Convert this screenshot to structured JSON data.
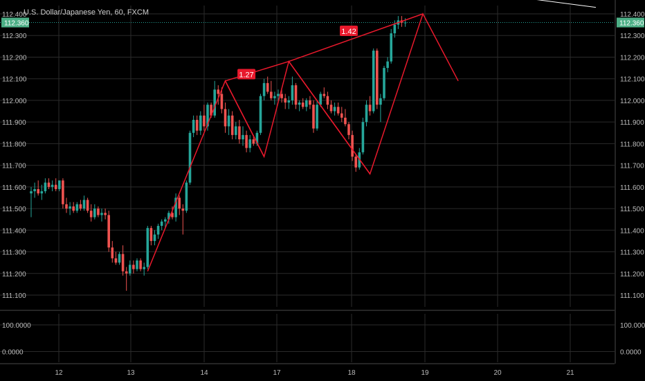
{
  "chart_data": {
    "type": "candlestick",
    "title": "U.S. Dollar/Japanese Yen, 60, FXCM",
    "xlabel": "",
    "ylabel": "",
    "x_ticks": [
      "12",
      "13",
      "14",
      "17",
      "18",
      "19",
      "20",
      "21"
    ],
    "price_panel": {
      "ylim": [
        111.05,
        112.43
      ],
      "y_ticks": [
        "112.400",
        "112.300",
        "112.200",
        "112.100",
        "112.000",
        "111.900",
        "111.800",
        "111.700",
        "111.600",
        "111.500",
        "111.400",
        "111.300",
        "111.200",
        "111.100"
      ],
      "y_tick_values": [
        112.4,
        112.3,
        112.2,
        112.1,
        112.0,
        111.9,
        111.8,
        111.7,
        111.6,
        111.5,
        111.4,
        111.3,
        111.2,
        111.1
      ],
      "last_price": 112.36,
      "last_price_label": "112.360",
      "grid": true
    },
    "indicator_panel": {
      "y_ticks": [
        "100.0000",
        "0.0000"
      ],
      "y_tick_values": [
        100,
        0
      ]
    },
    "candles": [
      {
        "o": 111.57,
        "h": 111.6,
        "l": 111.46,
        "c": 111.58
      },
      {
        "o": 111.58,
        "h": 111.62,
        "l": 111.55,
        "c": 111.59
      },
      {
        "o": 111.59,
        "h": 111.63,
        "l": 111.56,
        "c": 111.57
      },
      {
        "o": 111.57,
        "h": 111.61,
        "l": 111.54,
        "c": 111.58
      },
      {
        "o": 111.58,
        "h": 111.64,
        "l": 111.57,
        "c": 111.62
      },
      {
        "o": 111.62,
        "h": 111.64,
        "l": 111.59,
        "c": 111.6
      },
      {
        "o": 111.6,
        "h": 111.63,
        "l": 111.58,
        "c": 111.61
      },
      {
        "o": 111.61,
        "h": 111.64,
        "l": 111.58,
        "c": 111.59
      },
      {
        "o": 111.59,
        "h": 111.63,
        "l": 111.58,
        "c": 111.63
      },
      {
        "o": 111.63,
        "h": 111.64,
        "l": 111.5,
        "c": 111.52
      },
      {
        "o": 111.52,
        "h": 111.55,
        "l": 111.48,
        "c": 111.5
      },
      {
        "o": 111.5,
        "h": 111.53,
        "l": 111.47,
        "c": 111.51
      },
      {
        "o": 111.51,
        "h": 111.53,
        "l": 111.48,
        "c": 111.49
      },
      {
        "o": 111.49,
        "h": 111.53,
        "l": 111.48,
        "c": 111.52
      },
      {
        "o": 111.52,
        "h": 111.54,
        "l": 111.49,
        "c": 111.5
      },
      {
        "o": 111.5,
        "h": 111.56,
        "l": 111.49,
        "c": 111.54
      },
      {
        "o": 111.54,
        "h": 111.55,
        "l": 111.48,
        "c": 111.49
      },
      {
        "o": 111.49,
        "h": 111.52,
        "l": 111.44,
        "c": 111.46
      },
      {
        "o": 111.46,
        "h": 111.52,
        "l": 111.45,
        "c": 111.5
      },
      {
        "o": 111.5,
        "h": 111.51,
        "l": 111.46,
        "c": 111.47
      },
      {
        "o": 111.47,
        "h": 111.5,
        "l": 111.44,
        "c": 111.48
      },
      {
        "o": 111.48,
        "h": 111.5,
        "l": 111.45,
        "c": 111.47
      },
      {
        "o": 111.47,
        "h": 111.49,
        "l": 111.3,
        "c": 111.32
      },
      {
        "o": 111.32,
        "h": 111.35,
        "l": 111.25,
        "c": 111.27
      },
      {
        "o": 111.27,
        "h": 111.3,
        "l": 111.24,
        "c": 111.25
      },
      {
        "o": 111.25,
        "h": 111.3,
        "l": 111.24,
        "c": 111.29
      },
      {
        "o": 111.29,
        "h": 111.33,
        "l": 111.19,
        "c": 111.21
      },
      {
        "o": 111.21,
        "h": 111.23,
        "l": 111.12,
        "c": 111.2
      },
      {
        "o": 111.2,
        "h": 111.26,
        "l": 111.19,
        "c": 111.24
      },
      {
        "o": 111.24,
        "h": 111.26,
        "l": 111.2,
        "c": 111.22
      },
      {
        "o": 111.22,
        "h": 111.27,
        "l": 111.21,
        "c": 111.26
      },
      {
        "o": 111.26,
        "h": 111.27,
        "l": 111.21,
        "c": 111.22
      },
      {
        "o": 111.22,
        "h": 111.25,
        "l": 111.19,
        "c": 111.23
      },
      {
        "o": 111.23,
        "h": 111.42,
        "l": 111.22,
        "c": 111.41
      },
      {
        "o": 111.41,
        "h": 111.42,
        "l": 111.33,
        "c": 111.35
      },
      {
        "o": 111.35,
        "h": 111.4,
        "l": 111.33,
        "c": 111.38
      },
      {
        "o": 111.38,
        "h": 111.43,
        "l": 111.36,
        "c": 111.42
      },
      {
        "o": 111.42,
        "h": 111.45,
        "l": 111.4,
        "c": 111.44
      },
      {
        "o": 111.44,
        "h": 111.46,
        "l": 111.41,
        "c": 111.45
      },
      {
        "o": 111.45,
        "h": 111.49,
        "l": 111.43,
        "c": 111.48
      },
      {
        "o": 111.48,
        "h": 111.51,
        "l": 111.45,
        "c": 111.46
      },
      {
        "o": 111.46,
        "h": 111.57,
        "l": 111.44,
        "c": 111.55
      },
      {
        "o": 111.55,
        "h": 111.56,
        "l": 111.47,
        "c": 111.5
      },
      {
        "o": 111.5,
        "h": 111.52,
        "l": 111.38,
        "c": 111.49
      },
      {
        "o": 111.49,
        "h": 111.63,
        "l": 111.48,
        "c": 111.62
      },
      {
        "o": 111.62,
        "h": 111.86,
        "l": 111.61,
        "c": 111.85
      },
      {
        "o": 111.85,
        "h": 111.93,
        "l": 111.83,
        "c": 111.91
      },
      {
        "o": 111.91,
        "h": 111.93,
        "l": 111.84,
        "c": 111.86
      },
      {
        "o": 111.86,
        "h": 111.95,
        "l": 111.84,
        "c": 111.93
      },
      {
        "o": 111.93,
        "h": 111.98,
        "l": 111.86,
        "c": 111.88
      },
      {
        "o": 111.88,
        "h": 111.99,
        "l": 111.86,
        "c": 111.98
      },
      {
        "o": 111.98,
        "h": 111.99,
        "l": 111.92,
        "c": 111.93
      },
      {
        "o": 111.93,
        "h": 112.09,
        "l": 111.92,
        "c": 112.05
      },
      {
        "o": 112.05,
        "h": 112.07,
        "l": 111.98,
        "c": 112.03
      },
      {
        "o": 112.03,
        "h": 112.06,
        "l": 111.94,
        "c": 111.96
      },
      {
        "o": 111.96,
        "h": 111.99,
        "l": 111.85,
        "c": 111.88
      },
      {
        "o": 111.88,
        "h": 111.96,
        "l": 111.84,
        "c": 111.93
      },
      {
        "o": 111.93,
        "h": 111.95,
        "l": 111.82,
        "c": 111.84
      },
      {
        "o": 111.84,
        "h": 111.9,
        "l": 111.82,
        "c": 111.88
      },
      {
        "o": 111.88,
        "h": 111.91,
        "l": 111.8,
        "c": 111.82
      },
      {
        "o": 111.82,
        "h": 111.88,
        "l": 111.79,
        "c": 111.84
      },
      {
        "o": 111.84,
        "h": 111.86,
        "l": 111.76,
        "c": 111.78
      },
      {
        "o": 111.78,
        "h": 111.84,
        "l": 111.76,
        "c": 111.82
      },
      {
        "o": 111.82,
        "h": 111.84,
        "l": 111.79,
        "c": 111.8
      },
      {
        "o": 111.8,
        "h": 111.86,
        "l": 111.79,
        "c": 111.85
      },
      {
        "o": 111.85,
        "h": 112.03,
        "l": 111.84,
        "c": 112.02
      },
      {
        "o": 112.02,
        "h": 112.1,
        "l": 112.0,
        "c": 112.08
      },
      {
        "o": 112.08,
        "h": 112.11,
        "l": 112.03,
        "c": 112.04
      },
      {
        "o": 112.04,
        "h": 112.09,
        "l": 112.0,
        "c": 112.01
      },
      {
        "o": 112.01,
        "h": 112.04,
        "l": 111.98,
        "c": 112.02
      },
      {
        "o": 112.02,
        "h": 112.05,
        "l": 111.99,
        "c": 112.03
      },
      {
        "o": 112.03,
        "h": 112.05,
        "l": 111.99,
        "c": 112.01
      },
      {
        "o": 112.01,
        "h": 112.03,
        "l": 111.96,
        "c": 111.99
      },
      {
        "o": 111.99,
        "h": 112.02,
        "l": 111.96,
        "c": 112.0
      },
      {
        "o": 112.0,
        "h": 112.11,
        "l": 111.98,
        "c": 112.07
      },
      {
        "o": 112.07,
        "h": 112.08,
        "l": 111.96,
        "c": 111.98
      },
      {
        "o": 111.98,
        "h": 112.0,
        "l": 111.95,
        "c": 111.99
      },
      {
        "o": 111.99,
        "h": 112.01,
        "l": 111.96,
        "c": 111.97
      },
      {
        "o": 111.97,
        "h": 112.01,
        "l": 111.95,
        "c": 112.0
      },
      {
        "o": 112.0,
        "h": 112.02,
        "l": 111.96,
        "c": 111.98
      },
      {
        "o": 111.98,
        "h": 112.0,
        "l": 111.85,
        "c": 111.87
      },
      {
        "o": 111.87,
        "h": 112.0,
        "l": 111.86,
        "c": 111.98
      },
      {
        "o": 111.98,
        "h": 112.04,
        "l": 111.97,
        "c": 112.03
      },
      {
        "o": 112.03,
        "h": 112.06,
        "l": 112.01,
        "c": 112.02
      },
      {
        "o": 112.02,
        "h": 112.04,
        "l": 111.96,
        "c": 111.98
      },
      {
        "o": 111.98,
        "h": 112.0,
        "l": 111.94,
        "c": 111.95
      },
      {
        "o": 111.95,
        "h": 111.99,
        "l": 111.93,
        "c": 111.97
      },
      {
        "o": 111.97,
        "h": 111.99,
        "l": 111.93,
        "c": 111.94
      },
      {
        "o": 111.94,
        "h": 111.97,
        "l": 111.9,
        "c": 111.92
      },
      {
        "o": 111.92,
        "h": 111.96,
        "l": 111.88,
        "c": 111.89
      },
      {
        "o": 111.89,
        "h": 111.9,
        "l": 111.82,
        "c": 111.84
      },
      {
        "o": 111.84,
        "h": 111.86,
        "l": 111.72,
        "c": 111.74
      },
      {
        "o": 111.74,
        "h": 111.75,
        "l": 111.67,
        "c": 111.69
      },
      {
        "o": 111.69,
        "h": 111.78,
        "l": 111.68,
        "c": 111.76
      },
      {
        "o": 111.76,
        "h": 111.92,
        "l": 111.75,
        "c": 111.9
      },
      {
        "o": 111.9,
        "h": 112.0,
        "l": 111.88,
        "c": 111.98
      },
      {
        "o": 111.98,
        "h": 112.02,
        "l": 111.93,
        "c": 111.95
      },
      {
        "o": 111.95,
        "h": 112.24,
        "l": 111.94,
        "c": 112.23
      },
      {
        "o": 112.23,
        "h": 112.24,
        "l": 111.96,
        "c": 111.98
      },
      {
        "o": 111.98,
        "h": 112.03,
        "l": 111.9,
        "c": 112.01
      },
      {
        "o": 112.01,
        "h": 112.16,
        "l": 112.0,
        "c": 112.15
      },
      {
        "o": 112.15,
        "h": 112.2,
        "l": 112.13,
        "c": 112.18
      },
      {
        "o": 112.18,
        "h": 112.33,
        "l": 112.17,
        "c": 112.31
      },
      {
        "o": 112.31,
        "h": 112.37,
        "l": 112.29,
        "c": 112.35
      },
      {
        "o": 112.35,
        "h": 112.39,
        "l": 112.33,
        "c": 112.37
      },
      {
        "o": 112.37,
        "h": 112.39,
        "l": 112.34,
        "c": 112.36
      },
      {
        "o": 112.36,
        "h": 112.38,
        "l": 112.34,
        "c": 112.36
      }
    ],
    "pattern": {
      "points": [
        {
          "bar": 33,
          "price": 111.21
        },
        {
          "bar": 55,
          "price": 112.09
        },
        {
          "bar": 66,
          "price": 111.74
        },
        {
          "bar": 73,
          "price": 112.18
        },
        {
          "bar": 96,
          "price": 111.66
        },
        {
          "bar": 111,
          "price": 112.4
        },
        {
          "bar": 121,
          "price": 112.09
        }
      ],
      "extra_segments": [
        {
          "from": {
            "bar": 55,
            "price": 112.09
          },
          "to": {
            "bar": 73,
            "price": 112.18
          }
        },
        {
          "from": {
            "bar": 73,
            "price": 112.18
          },
          "to": {
            "bar": 111,
            "price": 112.4
          }
        },
        {
          "from": {
            "bar": 55,
            "price": 112.09
          },
          "to": {
            "bar": 66,
            "price": 111.74
          }
        },
        {
          "from": {
            "bar": 73,
            "price": 112.18
          },
          "to": {
            "bar": 96,
            "price": 111.66
          }
        }
      ],
      "labels": [
        {
          "text": "1.27",
          "bar": 61,
          "price": 112.12
        },
        {
          "text": "1.42",
          "bar": 90,
          "price": 112.32
        }
      ]
    },
    "trendline": {
      "from": {
        "bar": 113,
        "price": 112.53
      },
      "to": {
        "bar": 160,
        "price": 112.43
      }
    },
    "colors": {
      "background": "#000000",
      "up": "#26a69a",
      "down": "#ef5350",
      "pattern": "#e8192c",
      "grid": "#2b2b2b",
      "axis_text": "#bcbcbc",
      "last_price_bg": "#4caf86",
      "trendline": "#ffffff"
    }
  }
}
